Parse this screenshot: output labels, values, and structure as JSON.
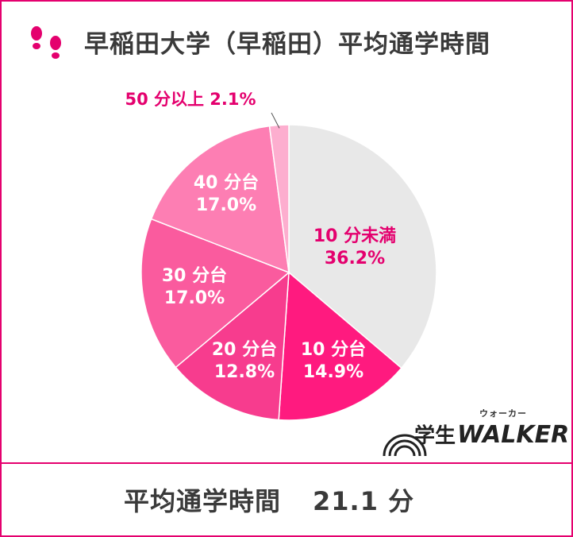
{
  "header": {
    "title": "早稲田大学（早稲田）平均通学時間",
    "icon": "footprints-icon"
  },
  "chart_data": {
    "type": "pie",
    "title": "早稲田大学（早稲田）平均通学時間",
    "slices": [
      {
        "label": "10 分未満",
        "value": 36.2,
        "value_label": "36.2%",
        "color": "#e8e8e8"
      },
      {
        "label": "10 分台",
        "value": 14.9,
        "value_label": "14.9%",
        "color": "#ff1a7f"
      },
      {
        "label": "20 分台",
        "value": 12.8,
        "value_label": "12.8%",
        "color": "#f73c8e"
      },
      {
        "label": "30 分台",
        "value": 17.0,
        "value_label": "17.0%",
        "color": "#fa5b9e"
      },
      {
        "label": "40 分台",
        "value": 17.0,
        "value_label": "17.0%",
        "color": "#fd7eb3"
      },
      {
        "label": "50 分以上",
        "value": 2.1,
        "value_label": "2.1%",
        "color": "#fdaecf"
      }
    ],
    "start_angle_deg": 0,
    "direction": "clockwise"
  },
  "colors": {
    "accent": "#e4006e",
    "label_text": "#e4006e",
    "inner_label_text": "#ffffff",
    "text_dark": "#3a3a3a"
  },
  "footer": {
    "label": "平均通学時間",
    "value": "21.1 分"
  },
  "logo": {
    "kanji": "学生",
    "word": "WALKER",
    "kana": "ウォーカー"
  }
}
